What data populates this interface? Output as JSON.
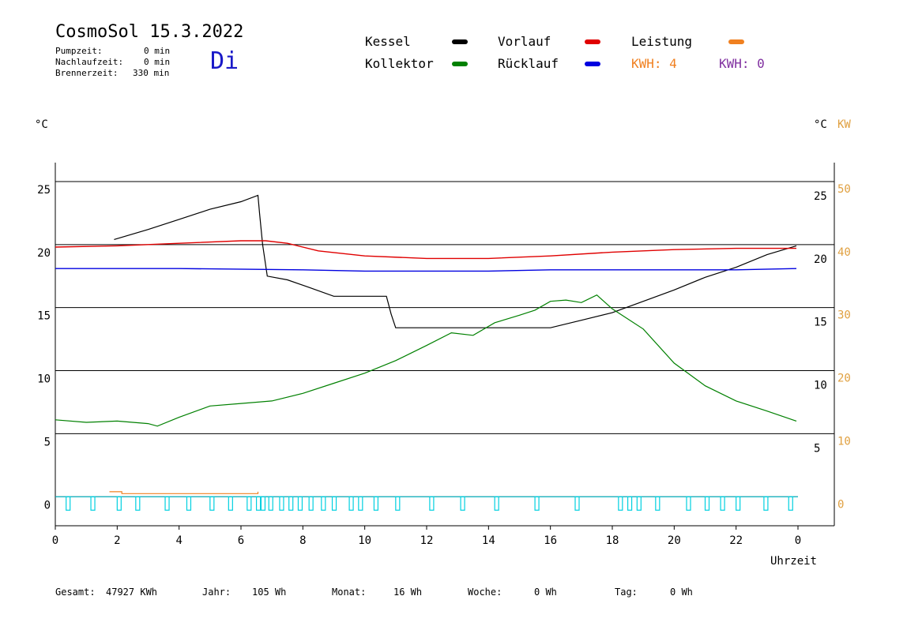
{
  "header": {
    "title": "CosmoSol 15.3.2022",
    "day": "Di",
    "stats": [
      {
        "label": "Pumpzeit:",
        "value": "0 min"
      },
      {
        "label": "Nachlaufzeit:",
        "value": "0 min"
      },
      {
        "label": "Brennerzeit:",
        "value": "330 min"
      }
    ]
  },
  "legend": {
    "kessel": "Kessel",
    "kollektor": "Kollektor",
    "vorlauf": "Vorlauf",
    "ruecklauf": "Rücklauf",
    "leistung": "Leistung",
    "kwh1": "KWH: 4",
    "kwh2": "KWH: 0"
  },
  "units": {
    "left": "°C",
    "right_c": "°C",
    "right_kw": "KW"
  },
  "footer": {
    "gesamt_label": "Gesamt:",
    "gesamt_value": "47927 KWh",
    "jahr_label": "Jahr:",
    "jahr_value": "105 Wh",
    "monat_label": "Monat:",
    "monat_value": "16 Wh",
    "woche_label": "Woche:",
    "woche_value": "0 Wh",
    "tag_label": "Tag:",
    "tag_value": "0 Wh"
  },
  "colors": {
    "kessel": "#000000",
    "kollektor": "#008000",
    "vorlauf": "#e00000",
    "ruecklauf": "#0000e0",
    "leistung": "#f08020",
    "kwh2": "#8030a0",
    "pump": "#00d0e0",
    "right_axis": "#e0a040"
  },
  "chart_data": {
    "type": "line",
    "xlabel": "Uhrzeit",
    "x_ticks": [
      "0",
      "2",
      "4",
      "6",
      "8",
      "10",
      "12",
      "14",
      "16",
      "18",
      "20",
      "22",
      "0"
    ],
    "y_left_ticks": [
      "0",
      "5",
      "10",
      "15",
      "20",
      "25"
    ],
    "y_right_c_ticks": [
      "5",
      "10",
      "15",
      "20",
      "25"
    ],
    "y_right_kw_ticks": [
      "0",
      "10",
      "20",
      "30",
      "40",
      "50"
    ],
    "xlim": [
      0,
      24
    ],
    "ylim": [
      -2.3,
      26.5
    ],
    "grid": true,
    "series": [
      {
        "name": "Kessel",
        "x": [
          1.9,
          3,
          4,
          5,
          6,
          6.55,
          6.6,
          6.7,
          6.85,
          7.5,
          8.2,
          9.0,
          9.5,
          10.5,
          10.7,
          10.85,
          11.0,
          12,
          14,
          15.5,
          16,
          17,
          18,
          19,
          20,
          21,
          22,
          23,
          23.95
        ],
        "y": [
          20.4,
          21.2,
          22.0,
          22.8,
          23.4,
          23.9,
          22.5,
          20.0,
          17.5,
          17.2,
          16.6,
          15.9,
          15.9,
          15.9,
          15.9,
          14.5,
          13.4,
          13.4,
          13.4,
          13.4,
          13.4,
          14.0,
          14.6,
          15.5,
          16.4,
          17.4,
          18.2,
          19.2,
          19.9
        ]
      },
      {
        "name": "Kollektor",
        "x": [
          0,
          1,
          2,
          3,
          3.3,
          4,
          5,
          6,
          7,
          8,
          9,
          10,
          11,
          12,
          12.8,
          13.5,
          14.2,
          15,
          15.5,
          16,
          16.5,
          17,
          17.5,
          18,
          19,
          20,
          21,
          22,
          23,
          23.95
        ],
        "y": [
          6.1,
          5.9,
          6.0,
          5.8,
          5.6,
          6.3,
          7.2,
          7.4,
          7.6,
          8.2,
          9.0,
          9.8,
          10.8,
          12.0,
          13.0,
          12.8,
          13.8,
          14.4,
          14.8,
          15.5,
          15.6,
          15.4,
          16.0,
          14.9,
          13.3,
          10.6,
          8.8,
          7.6,
          6.8,
          6.0
        ]
      },
      {
        "name": "Vorlauf",
        "x": [
          0,
          2,
          4,
          6,
          6.8,
          7.5,
          8.5,
          10,
          12,
          14,
          16,
          18,
          20,
          22,
          23.95
        ],
        "y": [
          19.8,
          19.9,
          20.1,
          20.3,
          20.3,
          20.1,
          19.5,
          19.1,
          18.9,
          18.9,
          19.1,
          19.4,
          19.6,
          19.7,
          19.7
        ]
      },
      {
        "name": "Rücklauf",
        "x": [
          0,
          4,
          8,
          10,
          12,
          14,
          16,
          18,
          20,
          22,
          23.95
        ],
        "y": [
          18.1,
          18.1,
          18.0,
          17.9,
          17.9,
          17.9,
          18.0,
          18.0,
          18.0,
          18.0,
          18.1
        ]
      },
      {
        "name": "Leistung",
        "x": [
          1.75,
          2.15,
          2.15,
          6.55,
          6.55
        ],
        "y": [
          0.4,
          0.4,
          0.25,
          0.25,
          0.4
        ],
        "axis": "kw"
      }
    ],
    "pump_pulses": [
      0.35,
      1.15,
      2.0,
      2.6,
      3.55,
      4.25,
      5.0,
      5.6,
      6.2,
      6.5,
      6.65,
      6.9,
      7.25,
      7.55,
      7.85,
      8.2,
      8.6,
      8.95,
      9.5,
      9.8,
      10.3,
      11.0,
      12.1,
      13.1,
      14.2,
      15.5,
      16.8,
      18.2,
      18.5,
      18.8,
      19.4,
      20.4,
      21.0,
      21.5,
      22.0,
      22.9,
      23.7
    ]
  }
}
